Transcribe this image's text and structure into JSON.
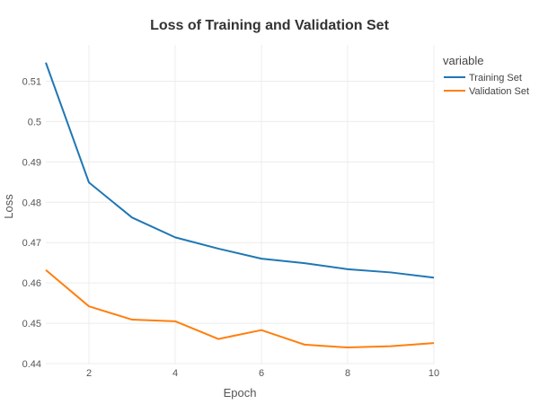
{
  "chart_data": {
    "type": "line",
    "title": "Loss of Training and Validation Set",
    "xlabel": "Epoch",
    "ylabel": "Loss",
    "xlim": [
      1,
      10
    ],
    "ylim": [
      0.44,
      0.519
    ],
    "xticks": [
      2,
      4,
      6,
      8,
      10
    ],
    "yticks": [
      0.44,
      0.45,
      0.46,
      0.47,
      0.48,
      0.49,
      0.5,
      0.51
    ],
    "ytick_labels": [
      "0.44",
      "0.45",
      "0.46",
      "0.47",
      "0.48",
      "0.49",
      "0.5",
      "0.51"
    ],
    "grid": true,
    "legend": {
      "title": "variable",
      "position": "top-right"
    },
    "x": [
      1,
      2,
      3,
      4,
      5,
      6,
      7,
      8,
      9,
      10
    ],
    "series": [
      {
        "name": "Training Set",
        "color": "#1f77b4",
        "values": [
          0.5146,
          0.4849,
          0.4762,
          0.4713,
          0.4685,
          0.466,
          0.4649,
          0.4634,
          0.4626,
          0.4613
        ]
      },
      {
        "name": "Validation Set",
        "color": "#ff7f0e",
        "values": [
          0.4632,
          0.4542,
          0.4509,
          0.4505,
          0.4461,
          0.4483,
          0.4447,
          0.444,
          0.4443,
          0.4451
        ]
      }
    ]
  }
}
